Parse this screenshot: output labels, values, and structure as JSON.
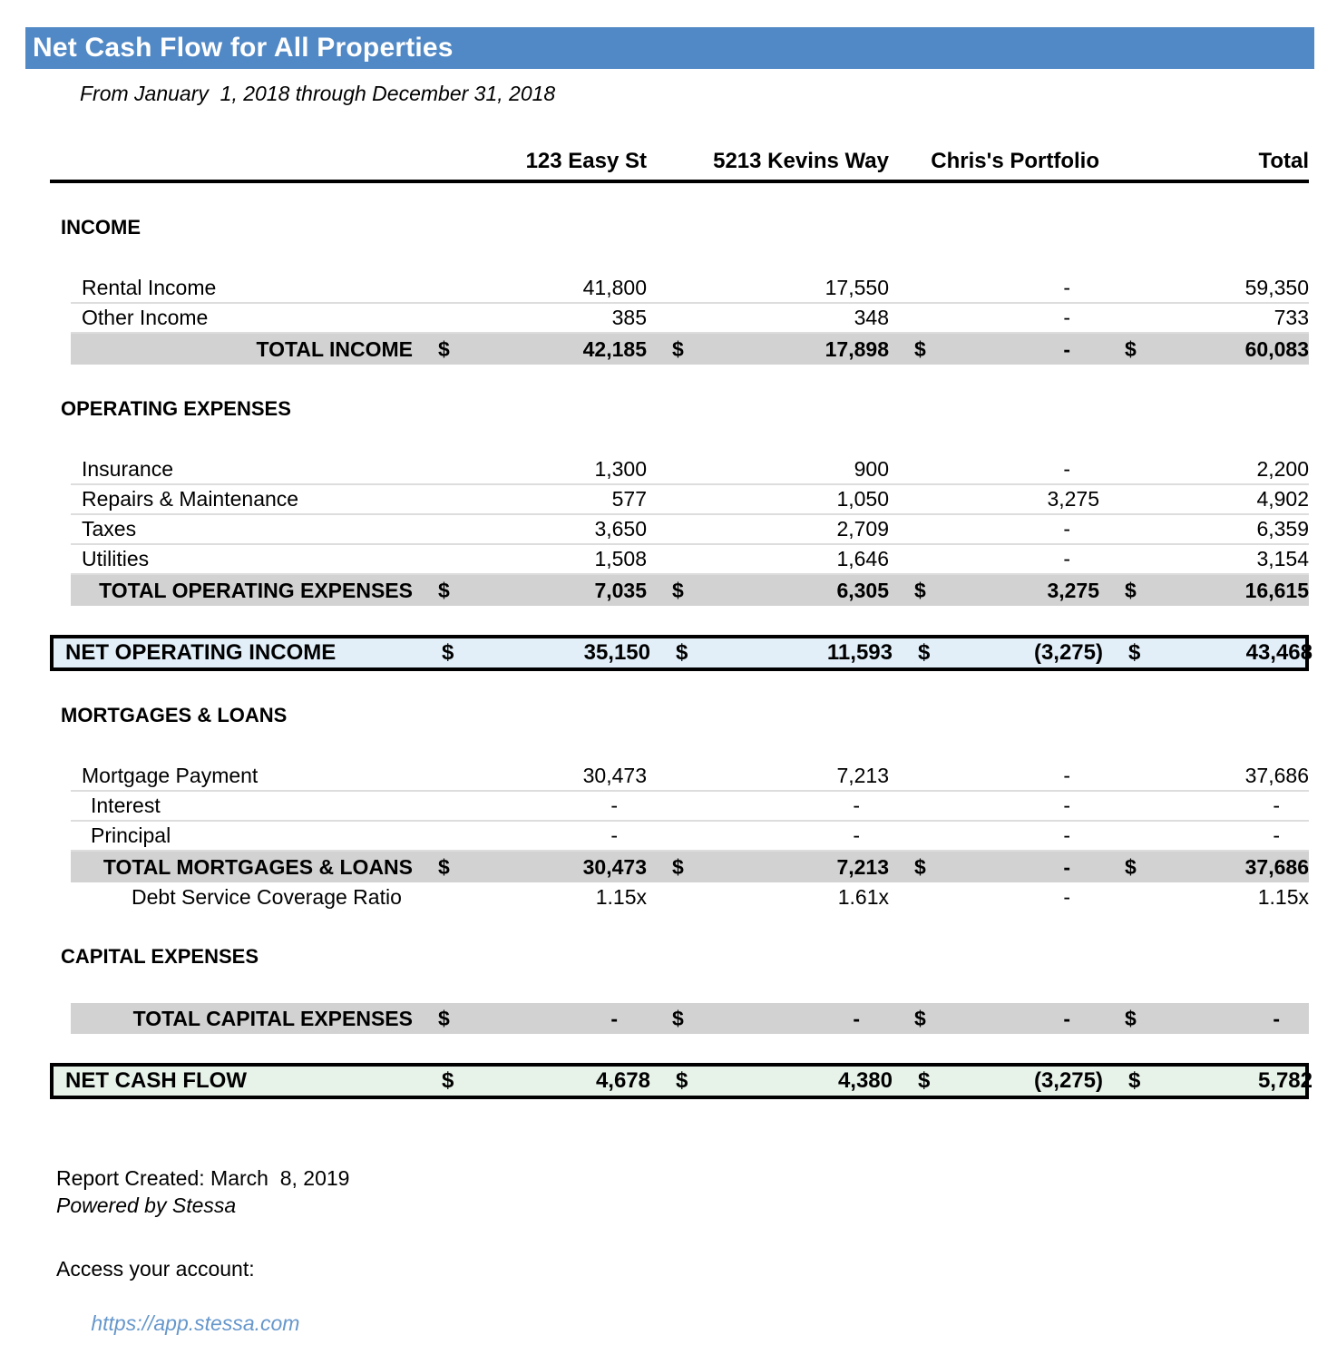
{
  "title": "Net Cash Flow for All Properties",
  "subtitle": "From January  1, 2018 through December 31, 2018",
  "currency_symbol": "$",
  "columns": [
    "123 Easy St",
    "5213 Kevins Way",
    "Chris's Portfolio",
    "Total"
  ],
  "blocks": [
    {
      "kind": "section",
      "heading": "INCOME",
      "rows": [
        {
          "type": "item",
          "label": "Rental Income",
          "values": [
            "41,800",
            "17,550",
            "-",
            "59,350"
          ]
        },
        {
          "type": "item",
          "label": "Other Income",
          "values": [
            "385",
            "348",
            "-",
            "733"
          ]
        },
        {
          "type": "total",
          "label": "TOTAL INCOME",
          "dollar": true,
          "values": [
            "42,185",
            "17,898",
            "-",
            "60,083"
          ]
        }
      ]
    },
    {
      "kind": "section",
      "heading": "OPERATING EXPENSES",
      "rows": [
        {
          "type": "item",
          "label": "Insurance",
          "values": [
            "1,300",
            "900",
            "-",
            "2,200"
          ]
        },
        {
          "type": "item",
          "label": "Repairs & Maintenance",
          "values": [
            "577",
            "1,050",
            "3,275",
            "4,902"
          ]
        },
        {
          "type": "item",
          "label": "Taxes",
          "values": [
            "3,650",
            "2,709",
            "-",
            "6,359"
          ]
        },
        {
          "type": "item",
          "label": "Utilities",
          "values": [
            "1,508",
            "1,646",
            "-",
            "3,154"
          ]
        },
        {
          "type": "total",
          "label": "TOTAL OPERATING EXPENSES",
          "dollar": true,
          "values": [
            "7,035",
            "6,305",
            "3,275",
            "16,615"
          ]
        }
      ]
    },
    {
      "kind": "net",
      "style": "blue",
      "label": "NET OPERATING INCOME",
      "dollar": true,
      "values": [
        "35,150",
        "11,593",
        "(3,275)",
        "43,468"
      ]
    },
    {
      "kind": "section",
      "heading": "MORTGAGES & LOANS",
      "rows": [
        {
          "type": "item",
          "label": "Mortgage Payment",
          "values": [
            "30,473",
            "7,213",
            "-",
            "37,686"
          ]
        },
        {
          "type": "item",
          "indent": 1,
          "label": "Interest",
          "values": [
            "-",
            "-",
            "-",
            "-"
          ]
        },
        {
          "type": "item",
          "indent": 1,
          "label": "Principal",
          "values": [
            "-",
            "-",
            "-",
            "-"
          ]
        },
        {
          "type": "total",
          "label": "TOTAL MORTGAGES & LOANS",
          "dollar": true,
          "values": [
            "30,473",
            "7,213",
            "-",
            "37,686"
          ]
        },
        {
          "type": "ratio",
          "label": "Debt Service Coverage Ratio",
          "values": [
            "1.15x",
            "1.61x",
            "-",
            "1.15x"
          ]
        }
      ]
    },
    {
      "kind": "section",
      "heading": "CAPITAL EXPENSES",
      "rows": [
        {
          "type": "total",
          "label": "TOTAL CAPITAL EXPENSES",
          "dollar": true,
          "values": [
            "-",
            "-",
            "-",
            "-"
          ]
        }
      ]
    },
    {
      "kind": "net",
      "style": "green",
      "label": "NET CASH FLOW",
      "dollar": true,
      "values": [
        "4,678",
        "4,380",
        "(3,275)",
        "5,782"
      ]
    }
  ],
  "footer": {
    "report_created": "Report Created: March  8, 2019",
    "powered_by": "Powered by Stessa",
    "access_label": "Access your account:",
    "access_url": "https://app.stessa.com"
  },
  "colors": {
    "accent_bar": "#5189C6",
    "net_operating_income_bg": "#E2EFF9",
    "net_cash_flow_bg": "#E7F2E9",
    "total_row_bg": "#D2D2D2",
    "link": "#6697CB"
  }
}
